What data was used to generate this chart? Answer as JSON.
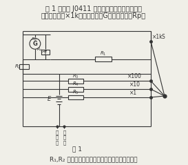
{
  "title_line1": "图 1 所示是 J0411 型多用表欧姆挡的电路图．",
  "title_line2": "最大倍率挡（×1k）只由电流计G的调零电位器Rp．",
  "caption": "图 1",
  "bottom_text": "R₁,R₂ 组成内部共用电路，其余几挡都是在共用电",
  "bg_color": "#f0efe8",
  "line_color": "#333333",
  "lw": 0.8
}
